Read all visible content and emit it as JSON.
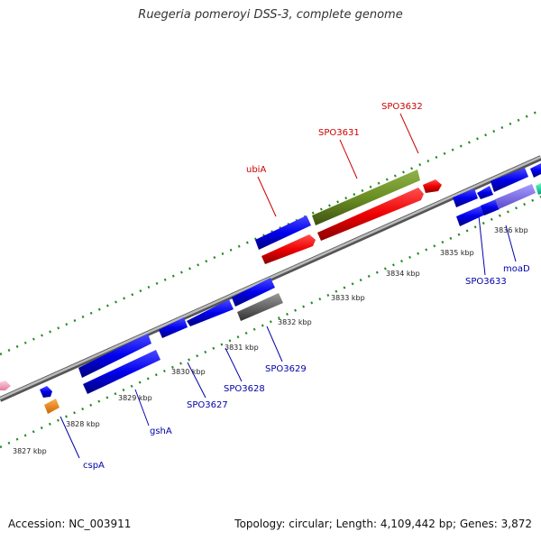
{
  "title": "Ruegeria pomeroyi DSS-3, complete genome",
  "footer": {
    "accession_label": "Accession:",
    "accession": "NC_003911",
    "topology_label": "Topology:",
    "topology": "circular",
    "length_label": "Length:",
    "length": "4,109,442 bp",
    "genes_label": "Genes:",
    "genes": "3,872"
  },
  "colors": {
    "forward_gene": "#ff0000",
    "reverse_gene": "#0000ff",
    "highlight_gene": "#6b8e23",
    "grey_gene": "#666666",
    "orange_gene": "#ff8c00",
    "lavender_gene": "#8470ff",
    "teal_gene": "#00e0a0",
    "pink_gene": "#ffaacc",
    "backbone": "#999999",
    "tick": "#228b22",
    "top_label": "#cc0000",
    "bottom_label": "#0000aa"
  },
  "kbp_labels": [
    "3827 kbp",
    "3828 kbp",
    "3829 kbp",
    "3830 kbp",
    "3831 kbp",
    "3832 kbp",
    "3833 kbp",
    "3834 kbp",
    "3835 kbp",
    "3836 kbp"
  ],
  "top_labels": [
    "ubiA",
    "SPO3631",
    "SPO3632"
  ],
  "bottom_labels": [
    "cspA",
    "gshA",
    "SPO3627",
    "SPO3628",
    "SPO3629",
    "SPO3633",
    "moaD"
  ]
}
